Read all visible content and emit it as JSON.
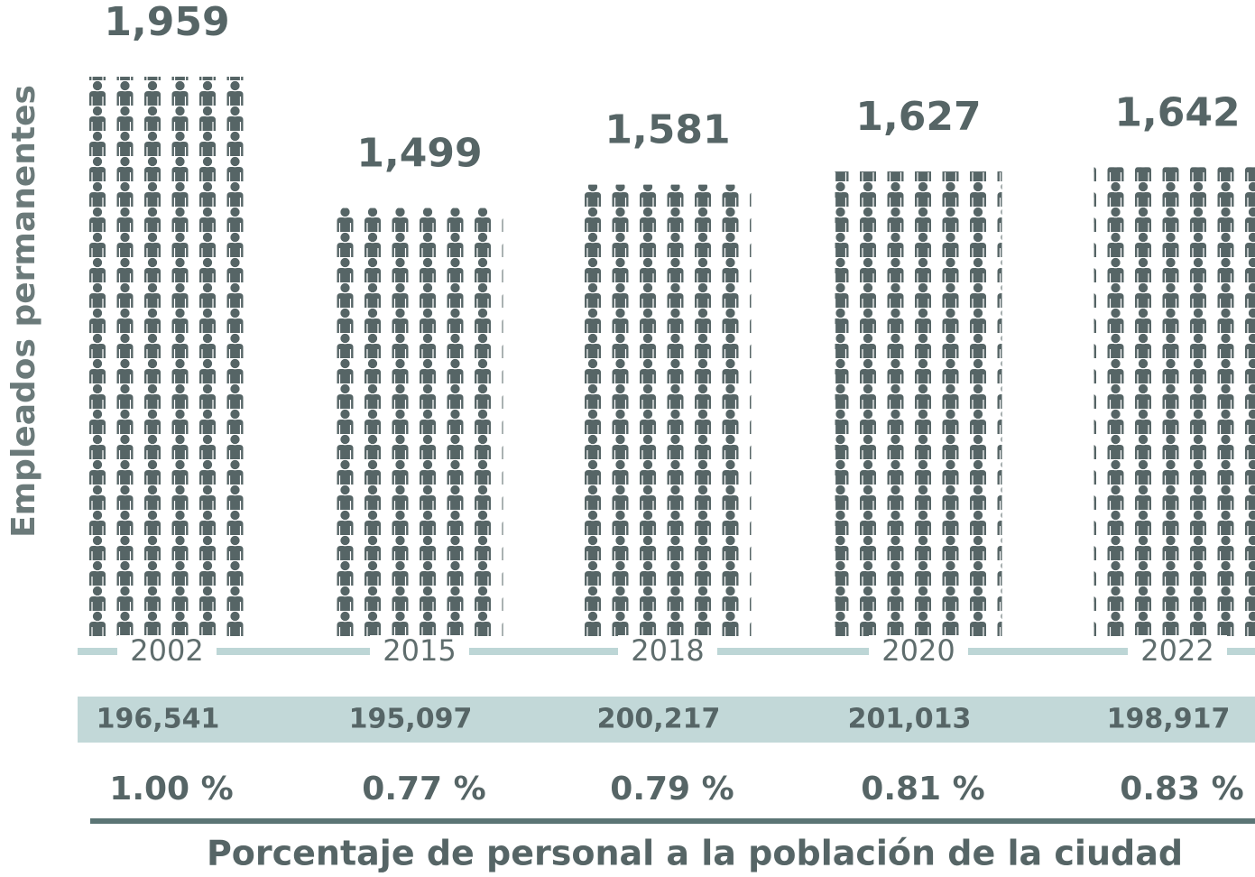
{
  "chart_data": {
    "type": "pictograph",
    "y_label": "Empleados permanentes",
    "x_label": "Porcentaje de personal a la población de la ciudad",
    "categories": [
      "2002",
      "2015",
      "2018",
      "2020",
      "2022"
    ],
    "values": [
      1959,
      1499,
      1581,
      1627,
      1642
    ],
    "value_labels": [
      "1,959",
      "1,499",
      "1,581",
      "1,627",
      "1,642"
    ],
    "color": "#566566",
    "population": {
      "values": [
        196541,
        195097,
        200217,
        201013,
        198917
      ],
      "value_labels": [
        "196,541",
        "195,097",
        "200,217",
        "201,013",
        "198,917"
      ]
    },
    "percentages": {
      "values": [
        1.0,
        0.77,
        0.79,
        0.81,
        0.83
      ],
      "value_labels": [
        "1.00 %",
        "0.77 %",
        "0.79 %",
        "0.81 %",
        "0.83 %"
      ]
    }
  }
}
